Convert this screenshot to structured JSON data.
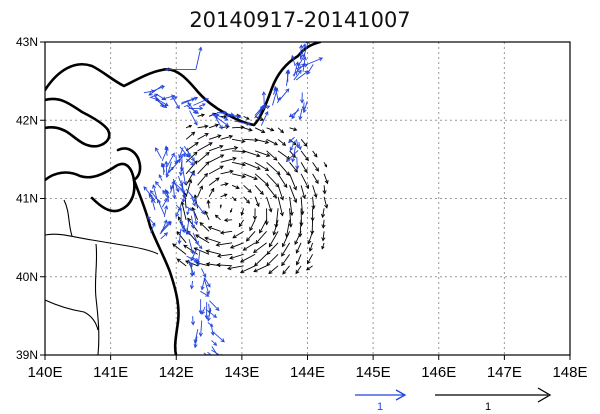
{
  "title": "20140917-20141007",
  "map": {
    "lon_range": [
      140,
      148
    ],
    "lat_range": [
      39,
      43
    ],
    "lon_ticks": [
      {
        "value": 140,
        "label": "140E"
      },
      {
        "value": 141,
        "label": "141E"
      },
      {
        "value": 142,
        "label": "142E"
      },
      {
        "value": 143,
        "label": "143E"
      },
      {
        "value": 144,
        "label": "144E"
      },
      {
        "value": 145,
        "label": "145E"
      },
      {
        "value": 146,
        "label": "146E"
      },
      {
        "value": 147,
        "label": "147E"
      },
      {
        "value": 148,
        "label": "148E"
      }
    ],
    "lat_ticks": [
      {
        "value": 39,
        "label": "39N"
      },
      {
        "value": 40,
        "label": "40N"
      },
      {
        "value": 41,
        "label": "41N"
      },
      {
        "value": 42,
        "label": "42N"
      },
      {
        "value": 43,
        "label": "43N"
      }
    ],
    "grid": true,
    "eddy_center": {
      "lon": 142.8,
      "lat": 40.9
    },
    "colors": {
      "land_outline": "#000000",
      "grid": "#999999",
      "vector_blue": "#2244dd",
      "vector_black": "#000000"
    }
  },
  "legend": {
    "blue_vector": {
      "label": "1",
      "color": "#2244dd"
    },
    "black_vector": {
      "label": "1",
      "color": "#000000"
    }
  }
}
